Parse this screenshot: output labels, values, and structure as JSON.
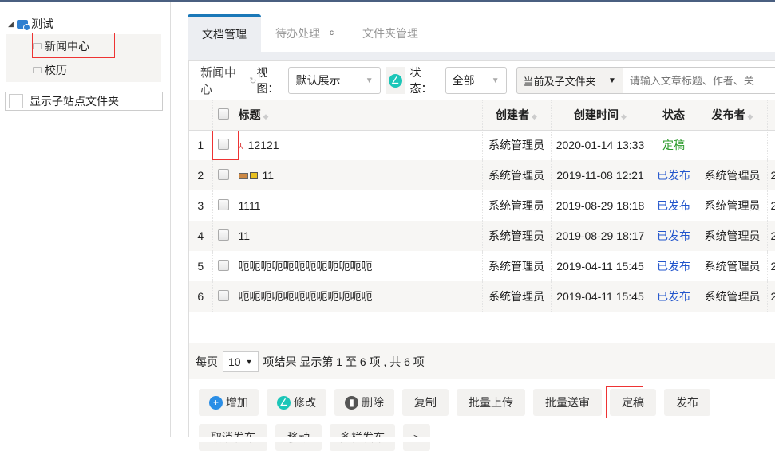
{
  "tree": {
    "root": "测试",
    "nodes": [
      "新闻中心",
      "校历"
    ],
    "show_sub": "显示子站点文件夹"
  },
  "tabs": [
    "文档管理",
    "待办处理",
    "文件夹管理"
  ],
  "filter": {
    "folder": "新闻中心",
    "view_label": "视图：",
    "view_value": "默认展示",
    "status_label": "状态：",
    "status_value": "全部",
    "scope": "当前及子文件夹",
    "search_placeholder": "请输入文章标题、作者、关"
  },
  "table": {
    "headers": [
      "标题",
      "创建者",
      "创建时间",
      "状态",
      "发布者"
    ],
    "rows": [
      {
        "n": "1",
        "title": "12121",
        "creator": "系统管理员",
        "time": "2020-01-14 13:33",
        "status": "定稿",
        "publisher": "",
        "extra": ""
      },
      {
        "n": "2",
        "title": "11",
        "creator": "系统管理员",
        "time": "2019-11-08 12:21",
        "status": "已发布",
        "publisher": "系统管理员",
        "extra": "2"
      },
      {
        "n": "3",
        "title": "1111",
        "creator": "系统管理员",
        "time": "2019-08-29 18:18",
        "status": "已发布",
        "publisher": "系统管理员",
        "extra": "2"
      },
      {
        "n": "4",
        "title": "11",
        "creator": "系统管理员",
        "time": "2019-08-29 18:17",
        "status": "已发布",
        "publisher": "系统管理员",
        "extra": "2"
      },
      {
        "n": "5",
        "title": "呃呃呃呃呃呃呃呃呃呃呃呃",
        "creator": "系统管理员",
        "time": "2019-04-11 15:45",
        "status": "已发布",
        "publisher": "系统管理员",
        "extra": "2"
      },
      {
        "n": "6",
        "title": "呃呃呃呃呃呃呃呃呃呃呃呃",
        "creator": "系统管理员",
        "time": "2019-04-11 15:45",
        "status": "已发布",
        "publisher": "系统管理员",
        "extra": "2"
      }
    ]
  },
  "pager": {
    "per_page": "每页",
    "size": "10",
    "text": "项结果  显示第 1 至 6 项 , 共 6 项"
  },
  "buttons": [
    "增加",
    "修改",
    "删除",
    "复制",
    "批量上传",
    "批量送审",
    "定稿",
    "发布",
    "取消发布",
    "移动",
    "多栏发布",
    ">"
  ],
  "colors": {
    "accent": "#1a78b8",
    "published": "#2255cc",
    "finalized": "#2a9a2a"
  }
}
